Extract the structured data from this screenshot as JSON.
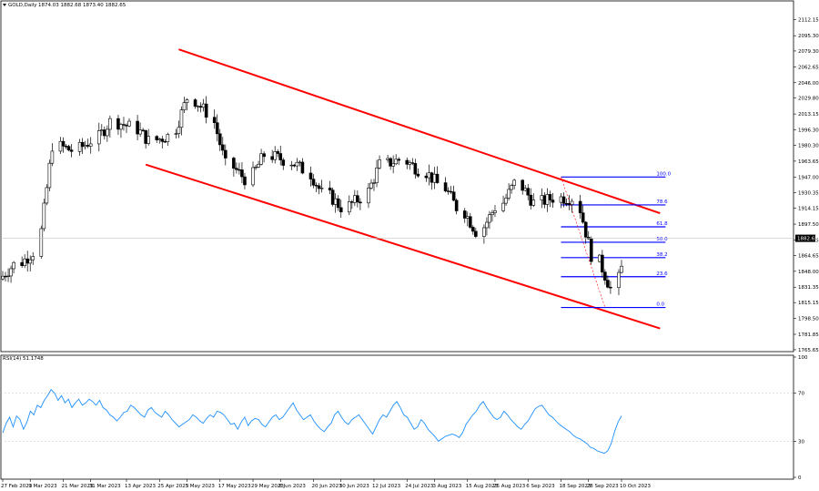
{
  "chart_data": {
    "type": "candlestick",
    "header": {
      "symbol_label": "GOLD,Daily",
      "ohlc_label": "1874.03 1882.68 1873.40 1882.65"
    },
    "price_panel": {
      "ylim": [
        1765.6,
        2128.0
      ],
      "y_ticks": [
        "2112.15",
        "2095.30",
        "2079.30",
        "2062.65",
        "2046.00",
        "2029.80",
        "2013.15",
        "1996.30",
        "1980.30",
        "1963.65",
        "1947.00",
        "1930.35",
        "1914.15",
        "1897.50",
        "1880.85",
        "1864.65",
        "1848.00",
        "1831.35",
        "1815.15",
        "1798.50",
        "1781.85",
        "1765.65"
      ],
      "current_price": "1882.65",
      "channel": {
        "color": "#ff0000",
        "upper_line": [
          [
            "2023-05-02",
            2081.0
          ],
          [
            "2023-10-24",
            1909.0
          ]
        ],
        "lower_line": [
          [
            "2023-04-20",
            1960.0
          ],
          [
            "2023-10-24",
            1788.0
          ]
        ]
      },
      "fibonacci": {
        "color": "#0000ff",
        "high": 1947.0,
        "low": 1810.0,
        "levels": [
          {
            "label": "100.0",
            "ratio": 1.0
          },
          {
            "label": "78.6",
            "ratio": 0.786
          },
          {
            "label": "61.8",
            "ratio": 0.618
          },
          {
            "label": "50.0",
            "ratio": 0.5
          },
          {
            "label": "38.2",
            "ratio": 0.382
          },
          {
            "label": "23.6",
            "ratio": 0.236
          },
          {
            "label": "0.0",
            "ratio": 0.0
          }
        ]
      },
      "candles_weekly_summary": [
        {
          "week": "2023-02-27",
          "close": 1855
        },
        {
          "week": "2023-03-06",
          "close": 1868
        },
        {
          "week": "2023-03-13",
          "close": 1980
        },
        {
          "week": "2023-03-20",
          "close": 1975
        },
        {
          "week": "2023-03-27",
          "close": 1985
        },
        {
          "week": "2023-04-03",
          "close": 2005
        },
        {
          "week": "2023-04-10",
          "close": 2000
        },
        {
          "week": "2023-04-17",
          "close": 1985
        },
        {
          "week": "2023-04-24",
          "close": 1990
        },
        {
          "week": "2023-05-01",
          "close": 2030
        },
        {
          "week": "2023-05-08",
          "close": 2015
        },
        {
          "week": "2023-05-15",
          "close": 1960
        },
        {
          "week": "2023-05-22",
          "close": 1945
        },
        {
          "week": "2023-05-29",
          "close": 1970
        },
        {
          "week": "2023-06-05",
          "close": 1965
        },
        {
          "week": "2023-06-12",
          "close": 1955
        },
        {
          "week": "2023-06-19",
          "close": 1930
        },
        {
          "week": "2023-06-26",
          "close": 1915
        },
        {
          "week": "2023-07-03",
          "close": 1925
        },
        {
          "week": "2023-07-10",
          "close": 1960
        },
        {
          "week": "2023-07-17",
          "close": 1965
        },
        {
          "week": "2023-07-24",
          "close": 1955
        },
        {
          "week": "2023-07-31",
          "close": 1940
        },
        {
          "week": "2023-08-07",
          "close": 1915
        },
        {
          "week": "2023-08-14",
          "close": 1890
        },
        {
          "week": "2023-08-21",
          "close": 1915
        },
        {
          "week": "2023-08-28",
          "close": 1940
        },
        {
          "week": "2023-09-04",
          "close": 1920
        },
        {
          "week": "2023-09-11",
          "close": 1925
        },
        {
          "week": "2023-09-18",
          "close": 1925
        },
        {
          "week": "2023-09-25",
          "close": 1865
        },
        {
          "week": "2023-10-02",
          "close": 1830
        },
        {
          "week": "2023-10-09",
          "close": 1882.65
        }
      ]
    },
    "rsi_panel": {
      "label": "RSI(14) 51.1748",
      "ylim": [
        0,
        100
      ],
      "y_ticks": [
        "100",
        "70",
        "30",
        "0"
      ],
      "levels": [
        70,
        30
      ],
      "color": "#1e90ff",
      "values": [
        37,
        45,
        50,
        42,
        51,
        48,
        40,
        46,
        55,
        52,
        60,
        58,
        64,
        68,
        73,
        70,
        64,
        68,
        62,
        65,
        58,
        62,
        65,
        60,
        62,
        65,
        63,
        60,
        64,
        58,
        56,
        52,
        50,
        47,
        50,
        54,
        55,
        60,
        58,
        55,
        52,
        50,
        56,
        58,
        54,
        52,
        50,
        55,
        52,
        48,
        45,
        42,
        44,
        46,
        48,
        52,
        50,
        47,
        45,
        49,
        52,
        50,
        55,
        54,
        52,
        48,
        44,
        45,
        40,
        46,
        50,
        43,
        47,
        49,
        48,
        44,
        42,
        46,
        50,
        52,
        48,
        50,
        54,
        58,
        62,
        56,
        52,
        48,
        50,
        52,
        47,
        43,
        40,
        38,
        42,
        45,
        52,
        55,
        50,
        46,
        44,
        48,
        50,
        52,
        48,
        44,
        40,
        36,
        42,
        48,
        52,
        50,
        55,
        60,
        63,
        58,
        52,
        50,
        45,
        40,
        42,
        48,
        45,
        40,
        37,
        34,
        30,
        32,
        34,
        35,
        36,
        35,
        33,
        37,
        44,
        48,
        52,
        55,
        60,
        63,
        58,
        54,
        50,
        48,
        50,
        55,
        52,
        48,
        45,
        42,
        40,
        44,
        47,
        52,
        57,
        59,
        60,
        56,
        52,
        50,
        47,
        44,
        42,
        40,
        38,
        35,
        33,
        32,
        30,
        28,
        25,
        24,
        22,
        21,
        20,
        22,
        28,
        38,
        46,
        51.17
      ]
    },
    "x_labels": [
      "27 Feb 2023",
      "9 Mar 2023",
      "21 Mar 2023",
      "31 Mar 2023",
      "13 Apr 2023",
      "25 Apr 2023",
      "5 May 2023",
      "17 May 2023",
      "29 May 2023",
      "8 Jun 2023",
      "20 Jun 2023",
      "30 Jun 2023",
      "12 Jul 2023",
      "24 Jul 2023",
      "3 Aug 2023",
      "15 Aug 2023",
      "25 Aug 2023",
      "6 Sep 2023",
      "18 Sep 2023",
      "28 Sep 2023",
      "10 Oct 2023"
    ]
  }
}
